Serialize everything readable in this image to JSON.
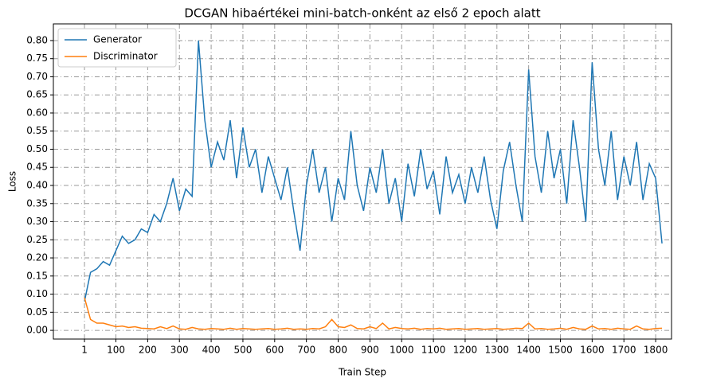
{
  "chart_data": {
    "type": "line",
    "title": "DCGAN hibaértékei mini-batch-onként az első 2 epoch alatt",
    "x_label": "Train Step",
    "y_label": "Loss",
    "x": [
      1,
      20,
      40,
      60,
      80,
      100,
      120,
      140,
      160,
      180,
      200,
      220,
      240,
      260,
      280,
      300,
      320,
      340,
      360,
      380,
      400,
      420,
      440,
      460,
      480,
      500,
      520,
      540,
      560,
      580,
      600,
      620,
      640,
      660,
      680,
      700,
      720,
      740,
      760,
      780,
      800,
      820,
      840,
      860,
      880,
      900,
      920,
      940,
      960,
      980,
      1000,
      1020,
      1040,
      1060,
      1080,
      1100,
      1120,
      1140,
      1160,
      1180,
      1200,
      1220,
      1240,
      1260,
      1280,
      1300,
      1320,
      1340,
      1360,
      1380,
      1400,
      1420,
      1440,
      1460,
      1480,
      1500,
      1520,
      1540,
      1560,
      1580,
      1600,
      1620,
      1640,
      1660,
      1680,
      1700,
      1720,
      1740,
      1760,
      1780,
      1800,
      1820
    ],
    "series": [
      {
        "name": "Generator",
        "color": "#1f77b4",
        "values": [
          0.08,
          0.16,
          0.17,
          0.19,
          0.18,
          0.22,
          0.26,
          0.24,
          0.25,
          0.28,
          0.27,
          0.32,
          0.3,
          0.35,
          0.42,
          0.33,
          0.39,
          0.37,
          0.8,
          0.58,
          0.45,
          0.52,
          0.47,
          0.58,
          0.42,
          0.56,
          0.45,
          0.5,
          0.38,
          0.48,
          0.42,
          0.36,
          0.45,
          0.33,
          0.22,
          0.4,
          0.5,
          0.38,
          0.45,
          0.3,
          0.42,
          0.36,
          0.55,
          0.4,
          0.33,
          0.45,
          0.38,
          0.5,
          0.35,
          0.42,
          0.3,
          0.46,
          0.37,
          0.5,
          0.39,
          0.44,
          0.32,
          0.48,
          0.38,
          0.43,
          0.35,
          0.45,
          0.38,
          0.48,
          0.36,
          0.28,
          0.44,
          0.52,
          0.4,
          0.3,
          0.72,
          0.48,
          0.38,
          0.55,
          0.42,
          0.5,
          0.35,
          0.58,
          0.45,
          0.3,
          0.74,
          0.5,
          0.4,
          0.55,
          0.36,
          0.48,
          0.4,
          0.52,
          0.36,
          0.46,
          0.42,
          0.24
        ]
      },
      {
        "name": "Discriminator",
        "color": "#ff7f0e",
        "values": [
          0.09,
          0.03,
          0.02,
          0.02,
          0.015,
          0.01,
          0.012,
          0.008,
          0.01,
          0.006,
          0.005,
          0.004,
          0.01,
          0.005,
          0.012,
          0.004,
          0.003,
          0.008,
          0.004,
          0.003,
          0.005,
          0.004,
          0.003,
          0.006,
          0.003,
          0.005,
          0.004,
          0.003,
          0.004,
          0.005,
          0.003,
          0.004,
          0.006,
          0.003,
          0.004,
          0.003,
          0.005,
          0.004,
          0.01,
          0.03,
          0.01,
          0.008,
          0.015,
          0.005,
          0.004,
          0.01,
          0.005,
          0.02,
          0.004,
          0.008,
          0.005,
          0.004,
          0.006,
          0.003,
          0.005,
          0.004,
          0.006,
          0.003,
          0.004,
          0.005,
          0.003,
          0.004,
          0.005,
          0.003,
          0.004,
          0.005,
          0.003,
          0.004,
          0.006,
          0.005,
          0.02,
          0.004,
          0.005,
          0.003,
          0.004,
          0.006,
          0.003,
          0.008,
          0.004,
          0.003,
          0.012,
          0.004,
          0.005,
          0.003,
          0.006,
          0.004,
          0.003,
          0.012,
          0.004,
          0.003,
          0.005,
          0.006
        ]
      }
    ],
    "xlim": [
      -97,
      1850
    ],
    "ylim": [
      -0.024,
      0.846
    ],
    "xticks": [
      1,
      100,
      200,
      300,
      400,
      500,
      600,
      700,
      800,
      900,
      1000,
      1100,
      1200,
      1300,
      1400,
      1500,
      1600,
      1700,
      1800
    ],
    "yticks": [
      {
        "value": 0,
        "label": "0.00"
      },
      {
        "value": 0.05,
        "label": "0.05"
      },
      {
        "value": 0.1,
        "label": "0.10"
      },
      {
        "value": 0.15,
        "label": "0.15"
      },
      {
        "value": 0.2,
        "label": "0.20"
      },
      {
        "value": 0.25,
        "label": "0.25"
      },
      {
        "value": 0.3,
        "label": "0.30"
      },
      {
        "value": 0.35,
        "label": "0.35"
      },
      {
        "value": 0.4,
        "label": "0.40"
      },
      {
        "value": 0.45,
        "label": "0.45"
      },
      {
        "value": 0.5,
        "label": "0.50"
      },
      {
        "value": 0.55,
        "label": "0.55"
      },
      {
        "value": 0.6,
        "label": "0.60"
      },
      {
        "value": 0.65,
        "label": "0.65"
      },
      {
        "value": 0.7,
        "label": "0.70"
      },
      {
        "value": 0.75,
        "label": "0.75"
      },
      {
        "value": 0.8,
        "label": "0.80"
      }
    ],
    "grid": true,
    "legend": "upper left"
  }
}
